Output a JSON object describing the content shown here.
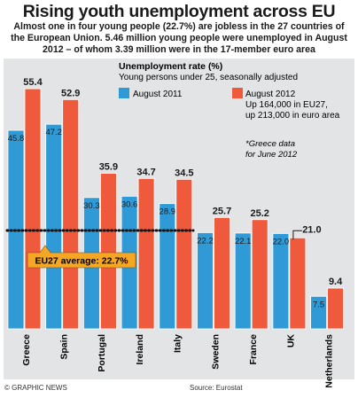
{
  "title": "Rising youth unemployment across EU",
  "subtitle": "Almost one in four young people (22.7%) are jobless in the 27 countries of the European Union. 5.46 million young people were unemployed in August 2012 – of whom 3.39 million were in the 17-member euro area",
  "footer": {
    "credit": "© GRAPHIC NEWS",
    "source": "Source: Eurostat"
  },
  "colors": {
    "series_2011": "#2f9ad6",
    "series_2012": "#ef5a3c",
    "panel": "#e3e4e6",
    "average_box": "#f5a623"
  },
  "chart_data": {
    "type": "bar",
    "title": "Unemployment rate (%)",
    "subtitle": "Young persons under 25, seasonally adjusted",
    "categories": [
      "Greece",
      "Spain",
      "Portugal",
      "Ireland",
      "Italy",
      "Sweden",
      "France",
      "UK",
      "Netherlands"
    ],
    "series": [
      {
        "name": "August 2011",
        "values": [
          45.8,
          47.2,
          30.3,
          30.6,
          28.9,
          22.2,
          22.1,
          22.0,
          7.5
        ],
        "labels": [
          "45.8",
          "47.2",
          "30.3",
          "30.6",
          "28.9",
          "22.2",
          "22.1",
          "22.0",
          "7.5"
        ]
      },
      {
        "name": "August 2012",
        "note_lines": [
          "Up 164,000 in EU27,",
          "up 213,000 in euro area"
        ],
        "values": [
          55.4,
          52.9,
          35.9,
          34.7,
          34.5,
          25.7,
          25.2,
          21.0,
          9.4
        ],
        "labels": [
          "55.4",
          "52.9",
          "35.9",
          "34.7",
          "34.5",
          "25.7",
          "25.2",
          "21.0",
          "9.4"
        ]
      }
    ],
    "ylim": [
      0,
      60
    ],
    "average": {
      "value": 22.7,
      "label": "EU27 average: 22.7%"
    },
    "footnote_lines": [
      "*Greece data",
      "for June 2012"
    ],
    "legend_position": "top-right",
    "grid": false
  }
}
